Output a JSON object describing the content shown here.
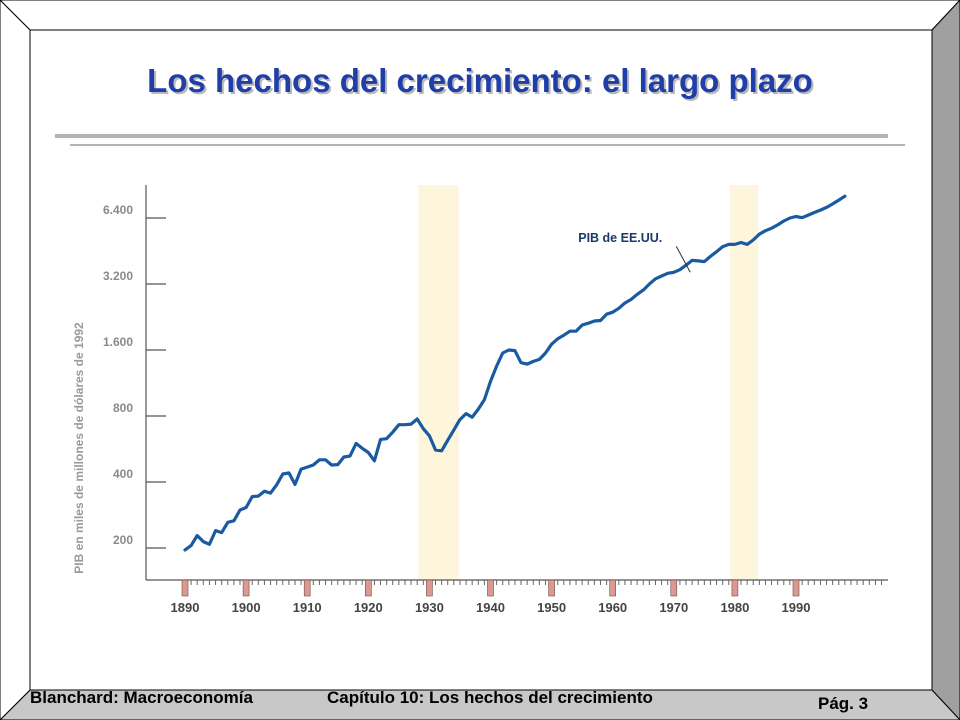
{
  "slide": {
    "title": "Los hechos del crecimiento: el largo plazo",
    "footer_left": "Blanchard: Macroeconomía",
    "footer_center": "Capítulo 10: Los hechos del crecimiento",
    "page_label": "Pág.",
    "page_number": "3",
    "colors": {
      "title": "#1f3ea8",
      "line": "#1a5aa0",
      "shading": "#fdf6dc",
      "tick_marker": "#d99a94"
    }
  },
  "chart_data": {
    "type": "line",
    "title": "",
    "ylabel": "PIB en miles de millones de dólares de 1992",
    "xlabel": "",
    "y_scale": "log",
    "ylim": [
      150,
      8800
    ],
    "xlim": [
      1889,
      2004
    ],
    "y_ticks": [
      200,
      400,
      800,
      1600,
      3200,
      6400
    ],
    "y_tick_labels": [
      "200",
      "400",
      "800",
      "1.600",
      "3.200",
      "6.400"
    ],
    "x_ticks": [
      1890,
      1900,
      1910,
      1920,
      1930,
      1940,
      1950,
      1960,
      1970,
      1980,
      1990
    ],
    "x_tick_labels": [
      "1890",
      "1900",
      "1910",
      "1920",
      "1930",
      "1940",
      "1950",
      "1960",
      "1970",
      "1980",
      "1990"
    ],
    "shaded_periods": [
      [
        1929,
        1934
      ],
      [
        1980,
        1983
      ]
    ],
    "annotation": "PIB de EE.UU.",
    "annotation_point": [
      1974,
      3400
    ],
    "series": [
      {
        "name": "",
        "x": [
          1890,
          1891,
          1892,
          1893,
          1894,
          1895,
          1896,
          1897,
          1898,
          1899,
          1900,
          1901,
          1902,
          1903,
          1904,
          1905,
          1906,
          1907,
          1908,
          1909,
          1910,
          1911,
          1912,
          1913,
          1914,
          1915,
          1916,
          1917,
          1918,
          1919,
          1920,
          1921,
          1922,
          1923,
          1924,
          1925,
          1926,
          1927,
          1928,
          1929,
          1930,
          1931,
          1932,
          1933,
          1934,
          1935,
          1936,
          1937,
          1938,
          1939,
          1940,
          1941,
          1942,
          1943,
          1944,
          1945,
          1946,
          1947,
          1948,
          1949,
          1950,
          1951,
          1952,
          1953,
          1954,
          1955,
          1956,
          1957,
          1958,
          1959,
          1960,
          1961,
          1962,
          1963,
          1964,
          1965,
          1966,
          1967,
          1968,
          1969,
          1970,
          1971,
          1972,
          1973,
          1974,
          1975,
          1976,
          1977,
          1978,
          1979,
          1980,
          1981,
          1982,
          1983,
          1984,
          1985,
          1986,
          1987,
          1988,
          1989,
          1990,
          1991,
          1992,
          1993,
          1994,
          1995,
          1996,
          1997,
          1998
        ],
        "values": [
          196,
          205,
          228,
          214,
          208,
          240,
          235,
          262,
          266,
          298,
          306,
          343,
          345,
          363,
          356,
          388,
          435,
          440,
          390,
          458,
          468,
          478,
          505,
          505,
          478,
          480,
          520,
          525,
          600,
          570,
          545,
          500,
          625,
          630,
          675,
          730,
          730,
          735,
          775,
          700,
          650,
          560,
          555,
          620,
          690,
          770,
          820,
          790,
          860,
          950,
          1150,
          1350,
          1550,
          1600,
          1590,
          1400,
          1380,
          1420,
          1450,
          1550,
          1700,
          1800,
          1870,
          1950,
          1950,
          2080,
          2120,
          2170,
          2180,
          2330,
          2380,
          2480,
          2620,
          2720,
          2870,
          3000,
          3200,
          3380,
          3480,
          3580,
          3620,
          3720,
          3900,
          4100,
          4080,
          4050,
          4280,
          4490,
          4740,
          4850,
          4850,
          4950,
          4850,
          5080,
          5400,
          5600,
          5750,
          5950,
          6200,
          6400,
          6500,
          6420,
          6600,
          6780,
          6950,
          7150,
          7420,
          7720,
          8050
        ]
      }
    ]
  }
}
